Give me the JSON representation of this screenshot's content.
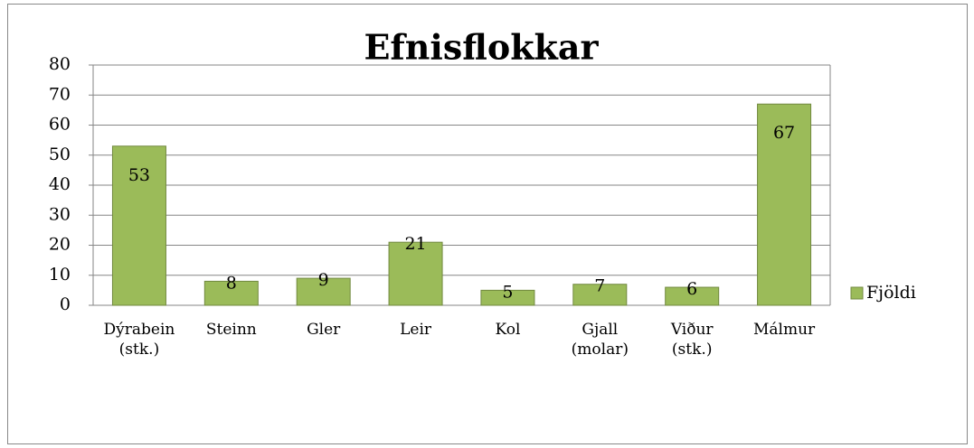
{
  "chart_data": {
    "type": "bar",
    "title": "Efnisflokkar",
    "categories": [
      "Dýrabein (stk.)",
      "Steinn",
      "Gler",
      "Leir",
      "Kol",
      "Gjall (molar)",
      "Viður (stk.)",
      "Málmur"
    ],
    "series": [
      {
        "name": "Fjöldi",
        "color": "#9bbb59",
        "values": [
          53,
          8,
          9,
          21,
          5,
          7,
          6,
          67
        ]
      }
    ],
    "ylim": [
      0,
      80
    ],
    "yticks": [
      0,
      10,
      20,
      30,
      40,
      50,
      60,
      70,
      80
    ],
    "grid": true,
    "legend": "right"
  }
}
